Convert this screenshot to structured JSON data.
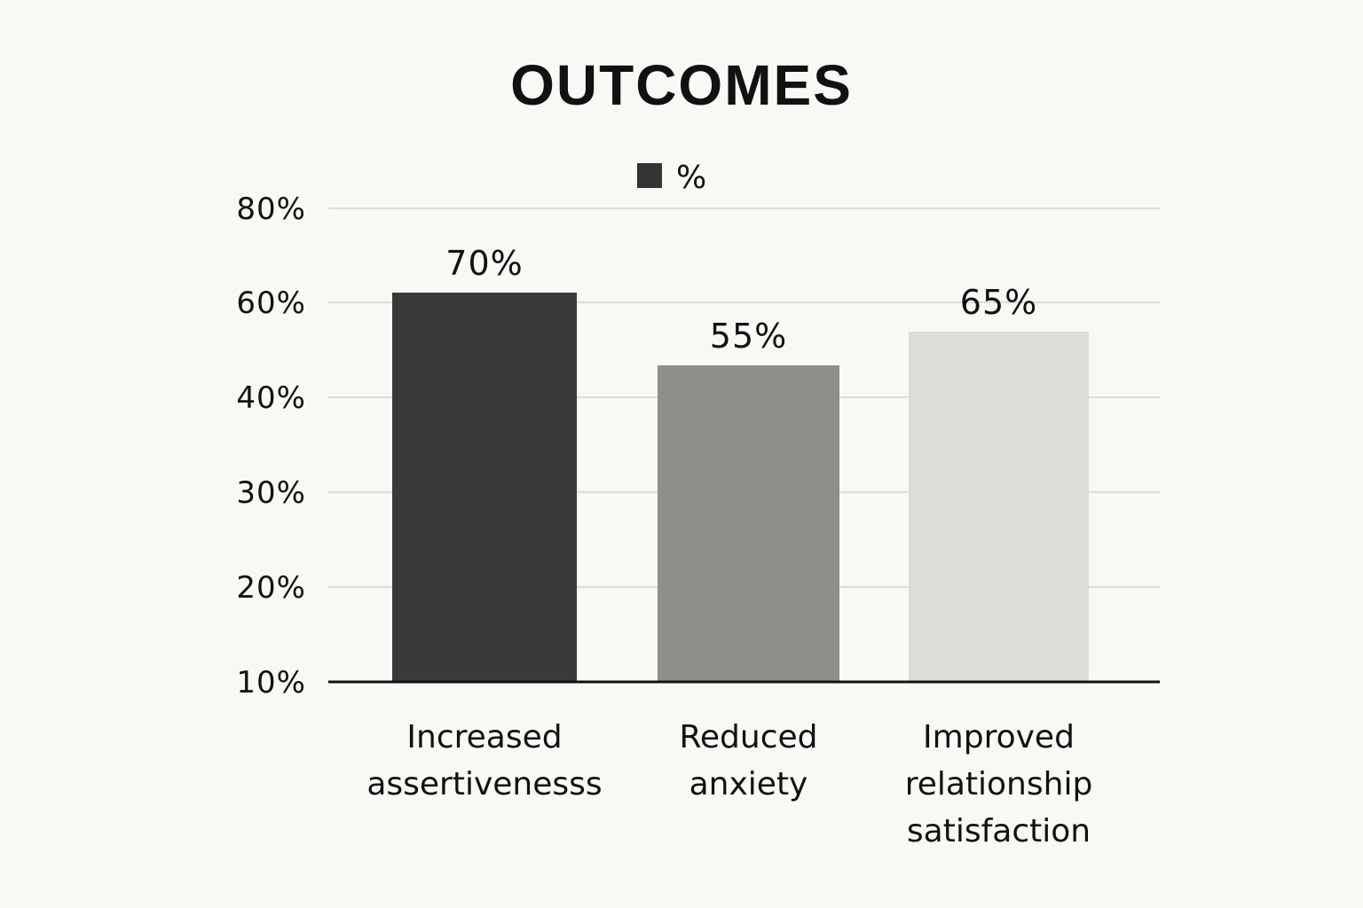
{
  "chart_data": {
    "type": "bar",
    "title": "OUTCOMES",
    "legend": {
      "label": "%",
      "color": "#333333",
      "placement": "top-center"
    },
    "categories": [
      [
        "Increased",
        "assertivenesss"
      ],
      [
        "Reduced",
        "anxiety"
      ],
      [
        "Improved",
        "relationship",
        "satisfaction"
      ]
    ],
    "values": [
      70,
      55,
      65
    ],
    "data_labels": [
      "70%",
      "55%",
      "65%"
    ],
    "bar_colors": [
      "#3a3a3a",
      "#8e8e8b",
      "#dcdcd8"
    ],
    "yaxis": {
      "tick_labels": [
        "10%",
        "20%",
        "30%",
        "40%",
        "60%",
        "80%"
      ]
    },
    "grid": true
  }
}
